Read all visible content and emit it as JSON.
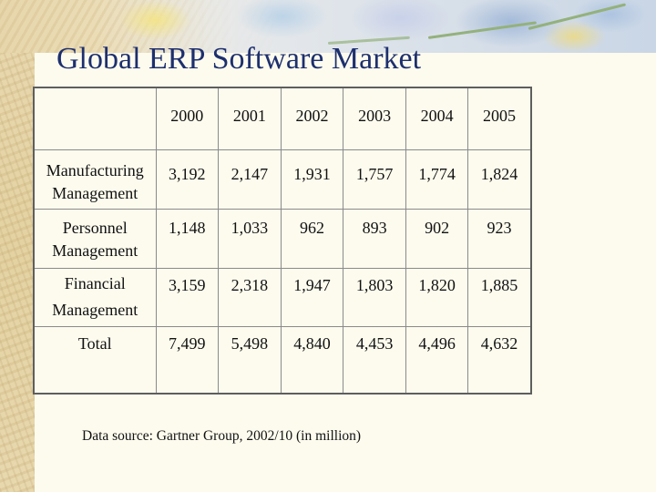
{
  "slide": {
    "title": "Global ERP Software Market",
    "source_note": "Data source: Gartner Group, 2002/10 (in million)"
  },
  "table": {
    "corner": "",
    "years": [
      "2000",
      "2001",
      "2002",
      "2003",
      "2004",
      "2005"
    ],
    "rows": [
      {
        "label": "Manufacturing Management",
        "values": [
          "3,192",
          "2,147",
          "1,931",
          "1,757",
          "1,774",
          "1,824"
        ]
      },
      {
        "label": "Personnel Management",
        "values": [
          "1,148",
          "1,033",
          "962",
          "893",
          "902",
          "923"
        ]
      },
      {
        "label": "Financial Management",
        "values": [
          "3,159",
          "2,318",
          "1,947",
          "1,803",
          "1,820",
          "1,885"
        ]
      },
      {
        "label": "Total",
        "values": [
          "7,499",
          "5,498",
          "4,840",
          "4,453",
          "4,496",
          "4,632"
        ]
      }
    ]
  },
  "theme": {
    "title_color": "#1d2f6e",
    "background_color": "#fdfbee"
  }
}
